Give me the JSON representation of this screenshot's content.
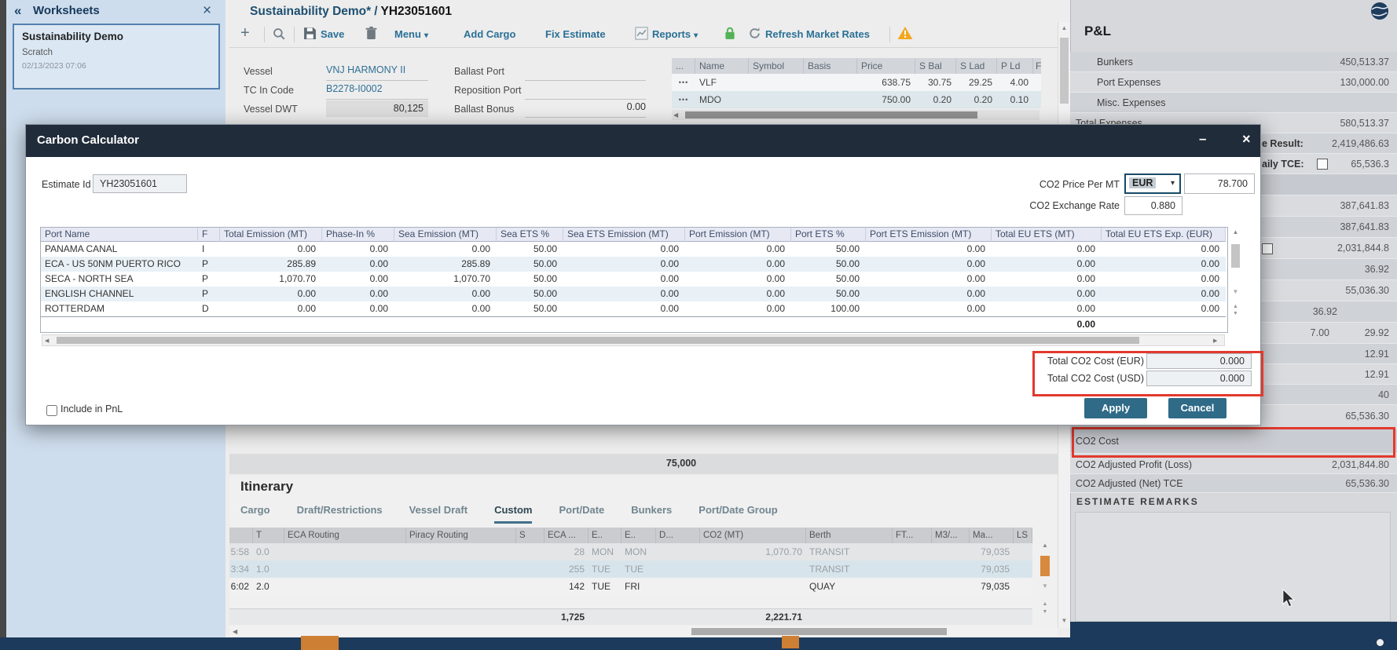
{
  "colors": {
    "highlight_red": "#e2392d",
    "button_teal": "#2f6b87",
    "lock_green": "#53b257",
    "warning_amber": "#f2a71e",
    "toolbar_accent": "#2a7096",
    "dialog_titlebar": "#202c3a"
  },
  "icons": {
    "collapse": "«",
    "close": "×",
    "minimize": "–",
    "dropdown": "▾",
    "scroll_up": "▲",
    "scroll_down": "▼",
    "scroll_left": "◀",
    "scroll_right": "▶",
    "plus": "+"
  },
  "window": {
    "worksheet_title": "Sustainability Demo*",
    "separator": "/",
    "estimate_id": "YH23051601"
  },
  "worksheets": {
    "header": "Worksheets",
    "card": {
      "title": "Sustainability Demo",
      "subtitle": "Scratch",
      "timestamp": "02/13/2023 07:06"
    }
  },
  "toolbar": {
    "save": "Save",
    "menu": "Menu",
    "add_cargo": "Add Cargo",
    "fix_estimate": "Fix Estimate",
    "reports": "Reports",
    "refresh_market_rates": "Refresh Market Rates"
  },
  "vessel_form": {
    "vessel_label": "Vessel",
    "vessel": "VNJ HARMONY II",
    "tc_in_code_label": "TC In Code",
    "tc_in_code": "B2278-I0002",
    "vessel_dwt_label": "Vessel DWT",
    "vessel_dwt": "80,125",
    "ballast_port_label": "Ballast Port",
    "ballast_port": "",
    "reposition_port_label": "Reposition Port",
    "reposition_port": "",
    "ballast_bonus_label": "Ballast Bonus",
    "ballast_bonus": "0.00"
  },
  "market_grid": {
    "columns": [
      "...",
      "Name",
      "Symbol",
      "Basis",
      "Price",
      "S Bal",
      "S Lad",
      "P Ld",
      "F"
    ],
    "rows": [
      [
        "•••",
        "VLF",
        "",
        "",
        "638.75",
        "30.75",
        "29.25",
        "4.00"
      ],
      [
        "•••",
        "MDO",
        "",
        "",
        "750.00",
        "0.20",
        "0.20",
        "0.10"
      ]
    ]
  },
  "pnl": {
    "title": "P&L",
    "rows": [
      {
        "label": "Bunkers",
        "value": "450,513.37"
      },
      {
        "label": "Port Expenses",
        "value": "130,000.00"
      },
      {
        "label": "Misc. Expenses",
        "value": ""
      },
      {
        "label": "Total Expenses",
        "value": "580,513.37"
      },
      {
        "label": "e Result:",
        "value": "2,419,486.63"
      },
      {
        "label": "aily TCE:",
        "value": "65,536.3"
      },
      {
        "label": "",
        "value": ""
      },
      {
        "label": "",
        "value": "387,641.83"
      },
      {
        "label": "",
        "value": "387,641.83"
      },
      {
        "label": "",
        "value": "2,031,844.8"
      },
      {
        "label": "",
        "value": "36.92"
      },
      {
        "label": "",
        "value": "55,036.30"
      },
      {
        "label": "",
        "value": "36.92"
      },
      {
        "label": "",
        "value": "29.92",
        "value2": "7.00"
      },
      {
        "label": "",
        "value": "12.91"
      },
      {
        "label": "",
        "value": "12.91"
      },
      {
        "label": "",
        "value": "40"
      },
      {
        "label": "Gross TCE",
        "value": "65,536.30"
      },
      {
        "label": "CO2 Cost",
        "value": ""
      },
      {
        "label": "CO2 Adjusted Profit (Loss)",
        "value": "2,031,844.80"
      },
      {
        "label": "CO2 Adjusted (Net) TCE",
        "value": "65,536.30"
      }
    ],
    "remarks_header": "ESTIMATE REMARKS"
  },
  "carbon_dialog": {
    "title": "Carbon Calculator",
    "estimate_id_label": "Estimate Id",
    "estimate_id": "YH23051601",
    "co2_price_label": "CO2 Price Per MT",
    "currency": "EUR",
    "co2_price": "78.700",
    "exchange_rate_label": "CO2 Exchange Rate",
    "exchange_rate": "0.880",
    "columns": [
      "Port Name",
      "F",
      "Total Emission (MT)",
      "Phase-In %",
      "Sea Emission (MT)",
      "Sea ETS %",
      "Sea ETS Emission (MT)",
      "Port Emission (MT)",
      "Port ETS %",
      "Port ETS Emission (MT)",
      "Total EU ETS (MT)",
      "Total EU ETS Exp. (EUR)"
    ],
    "rows": [
      [
        "PANAMA CANAL",
        "I",
        "0.00",
        "0.00",
        "0.00",
        "50.00",
        "0.00",
        "0.00",
        "50.00",
        "0.00",
        "0.00",
        "0.00"
      ],
      [
        "ECA - US 50NM PUERTO RICO",
        "P",
        "285.89",
        "0.00",
        "285.89",
        "50.00",
        "0.00",
        "0.00",
        "50.00",
        "0.00",
        "0.00",
        "0.00"
      ],
      [
        "SECA - NORTH SEA",
        "P",
        "1,070.70",
        "0.00",
        "1,070.70",
        "50.00",
        "0.00",
        "0.00",
        "50.00",
        "0.00",
        "0.00",
        "0.00"
      ],
      [
        "ENGLISH CHANNEL",
        "P",
        "0.00",
        "0.00",
        "0.00",
        "50.00",
        "0.00",
        "0.00",
        "50.00",
        "0.00",
        "0.00",
        "0.00"
      ],
      [
        "ROTTERDAM",
        "D",
        "0.00",
        "0.00",
        "0.00",
        "50.00",
        "0.00",
        "0.00",
        "100.00",
        "0.00",
        "0.00",
        "0.00"
      ]
    ],
    "total_eu_ets": "0.00",
    "total_eur_label": "Total CO2 Cost (EUR)",
    "total_eur_value": "0.000",
    "total_usd_label": "Total CO2 Cost (USD)",
    "total_usd_value": "0.000",
    "include_in_pnl_label": "Include in PnL",
    "apply": "Apply",
    "cancel": "Cancel"
  },
  "itinerary": {
    "title": "Itinerary",
    "summary_value": "75,000",
    "tabs": [
      "Cargo",
      "Draft/Restrictions",
      "Vessel Draft",
      "Custom",
      "Port/Date",
      "Bunkers",
      "Port/Date Group"
    ],
    "active_tab": "Custom",
    "columns": [
      "",
      "T",
      "ECA Routing",
      "Piracy Routing",
      "S",
      "ECA ...",
      "E..",
      "E..",
      "D...",
      "CO2 (MT)",
      "Berth",
      "FT...",
      "M3/...",
      "Ma...",
      "LS"
    ],
    "rows": [
      {
        "cells": [
          "5:58",
          "0.0",
          "",
          "",
          "",
          "28",
          "MON",
          "MON",
          "",
          "1,070.70",
          "TRANSIT",
          "",
          "",
          "79,035",
          ""
        ],
        "muted": true
      },
      {
        "cells": [
          "3:34",
          "1.0",
          "",
          "",
          "",
          "255",
          "TUE",
          "TUE",
          "",
          "",
          "TRANSIT",
          "",
          "",
          "79,035",
          ""
        ],
        "muted": true
      },
      {
        "cells": [
          "6:02",
          "2.0",
          "",
          "",
          "",
          "142",
          "TUE",
          "FRI",
          "",
          "",
          "QUAY",
          "",
          "",
          "79,035",
          ""
        ],
        "muted": false
      }
    ],
    "totals": {
      "eca": "1,725",
      "co2": "2,221.71"
    }
  }
}
